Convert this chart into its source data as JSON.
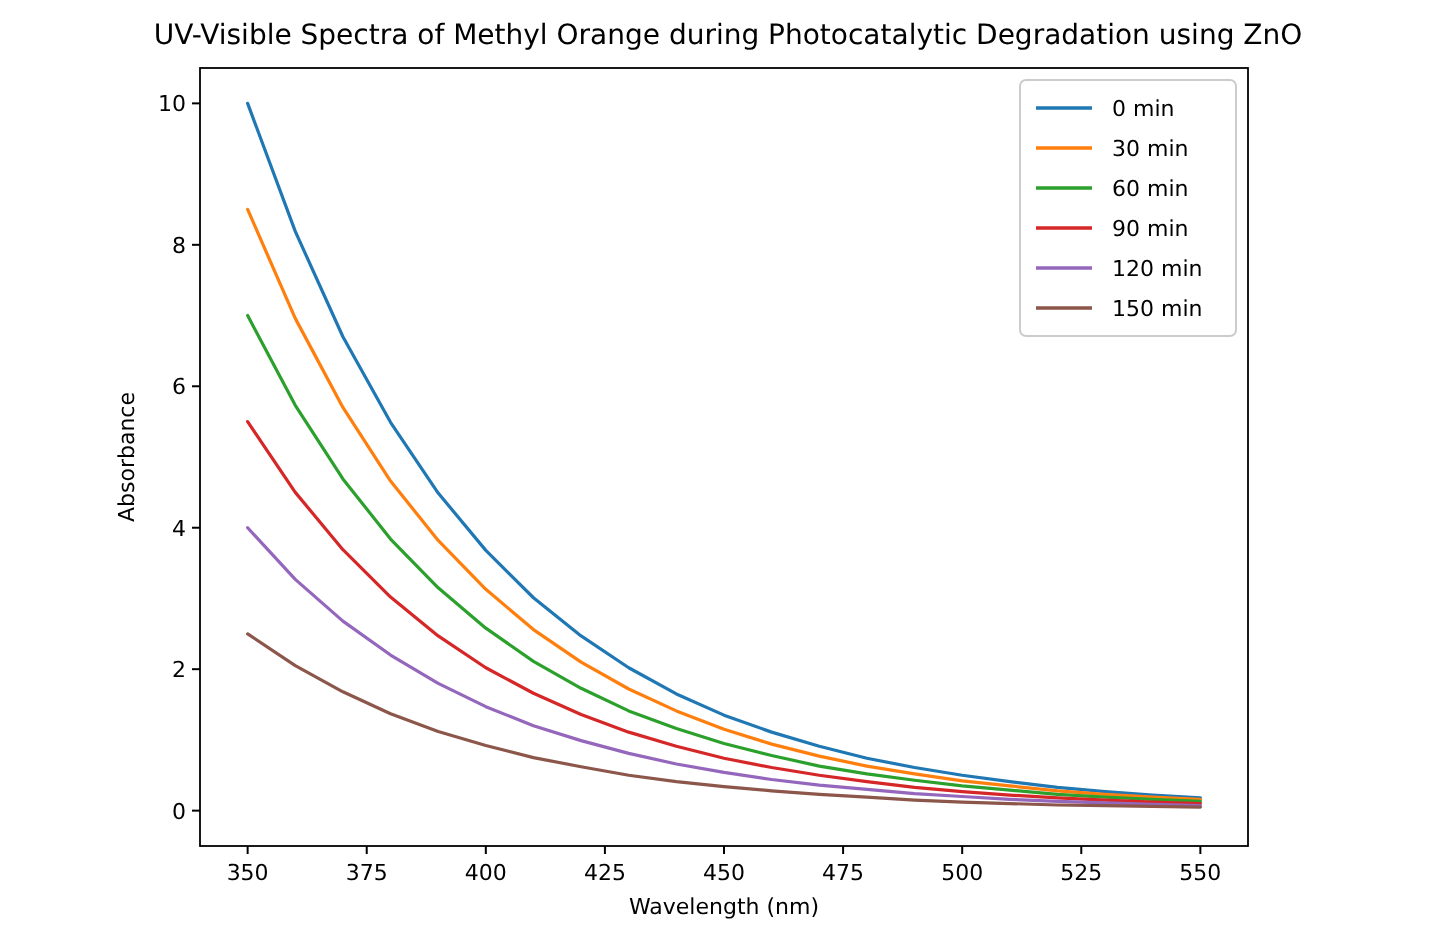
{
  "chart_data": {
    "type": "line",
    "title": "UV-Visible Spectra of Methyl Orange during Photocatalytic Degradation using ZnO",
    "xlabel": "Wavelength (nm)",
    "ylabel": "Absorbance",
    "x": [
      350,
      360,
      370,
      380,
      390,
      400,
      410,
      420,
      430,
      440,
      450,
      460,
      470,
      480,
      490,
      500,
      510,
      520,
      530,
      540,
      550
    ],
    "series": [
      {
        "name": "0 min",
        "color": "#1f77b4",
        "values": [
          10,
          8.19,
          6.7,
          5.49,
          4.49,
          3.68,
          3.01,
          2.47,
          2.02,
          1.65,
          1.35,
          1.11,
          0.91,
          0.74,
          0.61,
          0.5,
          0.41,
          0.33,
          0.27,
          0.22,
          0.18
        ]
      },
      {
        "name": "30 min",
        "color": "#ff7f0e",
        "values": [
          8.5,
          6.96,
          5.7,
          4.66,
          3.82,
          3.13,
          2.56,
          2.1,
          1.72,
          1.41,
          1.15,
          0.94,
          0.77,
          0.63,
          0.52,
          0.42,
          0.35,
          0.28,
          0.23,
          0.19,
          0.16
        ]
      },
      {
        "name": "60 min",
        "color": "#2ca02c",
        "values": [
          7,
          5.73,
          4.69,
          3.84,
          3.15,
          2.58,
          2.11,
          1.73,
          1.41,
          1.16,
          0.95,
          0.78,
          0.63,
          0.52,
          0.43,
          0.35,
          0.29,
          0.23,
          0.19,
          0.16,
          0.13
        ]
      },
      {
        "name": "90 min",
        "color": "#d62728",
        "values": [
          5.5,
          4.5,
          3.69,
          3.02,
          2.47,
          2.02,
          1.66,
          1.36,
          1.11,
          0.91,
          0.74,
          0.61,
          0.5,
          0.41,
          0.33,
          0.27,
          0.22,
          0.18,
          0.15,
          0.12,
          0.1
        ]
      },
      {
        "name": "120 min",
        "color": "#9467bd",
        "values": [
          4,
          3.27,
          2.68,
          2.2,
          1.8,
          1.47,
          1.2,
          0.99,
          0.81,
          0.66,
          0.54,
          0.44,
          0.36,
          0.3,
          0.24,
          0.2,
          0.16,
          0.13,
          0.11,
          0.09,
          0.07
        ]
      },
      {
        "name": "150 min",
        "color": "#8c564b",
        "values": [
          2.5,
          2.05,
          1.68,
          1.37,
          1.12,
          0.92,
          0.75,
          0.62,
          0.5,
          0.41,
          0.34,
          0.28,
          0.23,
          0.19,
          0.15,
          0.12,
          0.1,
          0.08,
          0.07,
          0.06,
          0.05
        ]
      }
    ],
    "xlim": [
      340,
      560
    ],
    "xticks": [
      350,
      375,
      400,
      425,
      450,
      475,
      500,
      525,
      550
    ],
    "ylim": [
      -0.5,
      10.5
    ],
    "yticks": [
      0,
      2,
      4,
      6,
      8,
      10
    ],
    "legend": "top right",
    "grid": false
  }
}
